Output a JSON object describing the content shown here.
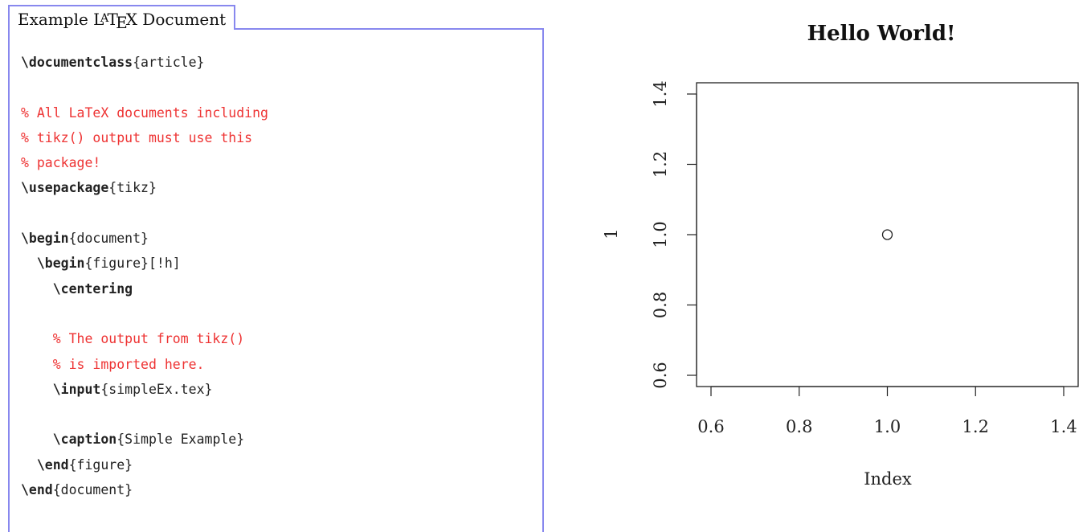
{
  "listing": {
    "title_prefix": "Example ",
    "title_logo_l": "L",
    "title_logo_a": "A",
    "title_logo_t": "T",
    "title_logo_e": "E",
    "title_logo_x": "X",
    "title_suffix": " Document",
    "lines": [
      {
        "indent": "",
        "kw": "\\documentclass",
        "rest": "{article}",
        "type": "code"
      },
      {
        "indent": "",
        "kw": "",
        "rest": "",
        "type": "blank"
      },
      {
        "indent": "",
        "kw": "",
        "rest": "% All LaTeX documents including",
        "type": "comment"
      },
      {
        "indent": "",
        "kw": "",
        "rest": "% tikz() output must use this",
        "type": "comment"
      },
      {
        "indent": "",
        "kw": "",
        "rest": "% package!",
        "type": "comment"
      },
      {
        "indent": "",
        "kw": "\\usepackage",
        "rest": "{tikz}",
        "type": "code"
      },
      {
        "indent": "",
        "kw": "",
        "rest": "",
        "type": "blank"
      },
      {
        "indent": "",
        "kw": "\\begin",
        "rest": "{document}",
        "type": "code"
      },
      {
        "indent": "  ",
        "kw": "\\begin",
        "rest": "{figure}[!h]",
        "type": "code"
      },
      {
        "indent": "    ",
        "kw": "\\centering",
        "rest": "",
        "type": "code"
      },
      {
        "indent": "",
        "kw": "",
        "rest": "",
        "type": "blank"
      },
      {
        "indent": "    ",
        "kw": "",
        "rest": "% The output from tikz()",
        "type": "comment"
      },
      {
        "indent": "    ",
        "kw": "",
        "rest": "% is imported here.",
        "type": "comment"
      },
      {
        "indent": "    ",
        "kw": "\\input",
        "rest": "{simpleEx.tex}",
        "type": "code"
      },
      {
        "indent": "",
        "kw": "",
        "rest": "",
        "type": "blank"
      },
      {
        "indent": "    ",
        "kw": "\\caption",
        "rest": "{Simple Example}",
        "type": "code"
      },
      {
        "indent": "  ",
        "kw": "\\end",
        "rest": "{figure}",
        "type": "code"
      },
      {
        "indent": "",
        "kw": "\\end",
        "rest": "{document}",
        "type": "code"
      }
    ],
    "colors": {
      "frame": "#8888ee",
      "comment": "#ee3333"
    }
  },
  "chart_data": {
    "type": "scatter",
    "title": "Hello World!",
    "xlabel": "Index",
    "ylabel": "1",
    "x": [
      1.0
    ],
    "y": [
      1.0
    ],
    "xlim": [
      0.6,
      1.4
    ],
    "ylim": [
      0.6,
      1.4
    ],
    "xticks": [
      "0.6",
      "0.8",
      "1.0",
      "1.2",
      "1.4"
    ],
    "yticks": [
      "0.6",
      "0.8",
      "1.0",
      "1.2",
      "1.4"
    ],
    "marker": "open-circle",
    "grid": false
  }
}
